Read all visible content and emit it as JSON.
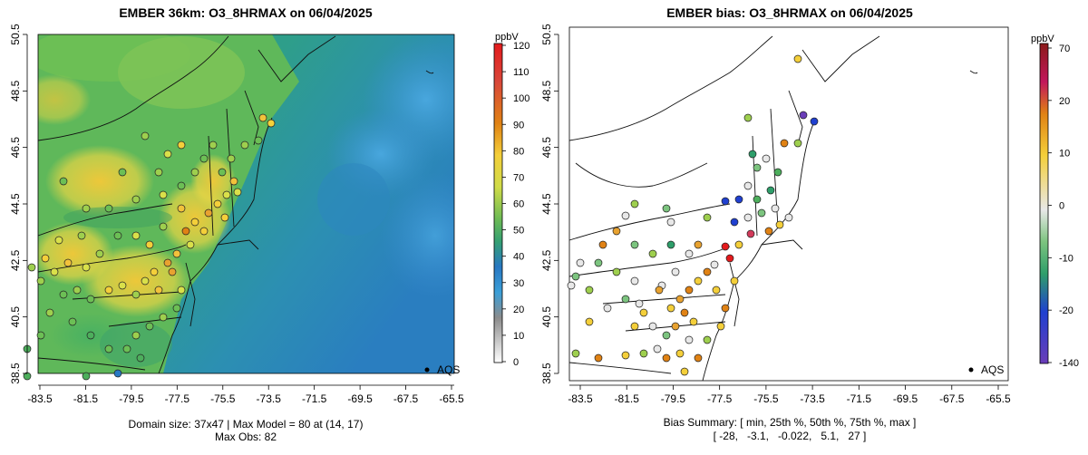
{
  "left": {
    "title": "EMBER 36km: O3_8HRMAX on 06/04/2025",
    "unit": "ppbV",
    "colorbar_ticks": [
      "120",
      "110",
      "100",
      "90",
      "80",
      "70",
      "60",
      "50",
      "40",
      "30",
      "20",
      "10",
      "0"
    ],
    "colorbar_colors": [
      "#e31a1c",
      "#e34a33",
      "#e08214",
      "#f5a623",
      "#f4cf3a",
      "#d9e04a",
      "#9ecf4e",
      "#4dae5c",
      "#2e9e8a",
      "#2878c2",
      "#3b9fd8",
      "#9a9a9a",
      "#ffffff"
    ],
    "x_ticks": [
      "-83.5",
      "-81.5",
      "-79.5",
      "-77.5",
      "-75.5",
      "-73.5",
      "-71.5",
      "-69.5",
      "-67.5",
      "-65.5"
    ],
    "y_ticks": [
      "50.5",
      "48.5",
      "46.5",
      "44.5",
      "42.5",
      "40.5",
      "38.5"
    ],
    "legend_label": "AQS",
    "footer_line1": "Domain size: 37x47 | Max Model = 80 at (14, 17)",
    "footer_line2": "Max Obs: 82"
  },
  "right": {
    "title": "EMBER bias: O3_8HRMAX on 06/04/2025",
    "unit": "ppbV",
    "colorbar_ticks": [
      "70",
      "20",
      "10",
      "0",
      "-10",
      "-20",
      "-140"
    ],
    "colorbar_colors": [
      "#8b1a1a",
      "#d23a5a",
      "#e08214",
      "#f4cf3a",
      "#e8e8e8",
      "#7cc47f",
      "#2e9e6a",
      "#2040d0",
      "#6a3db8"
    ],
    "x_ticks": [
      "-83.5",
      "-81.5",
      "-79.5",
      "-77.5",
      "-75.5",
      "-73.5",
      "-71.5",
      "-69.5",
      "-67.5",
      "-65.5"
    ],
    "y_ticks": [
      "50.5",
      "48.5",
      "46.5",
      "44.5",
      "42.5",
      "40.5",
      "38.5"
    ],
    "legend_label": "AQS",
    "footer_line1": "Bias Summary: [ min, 25th %, 50th %, 75th %, max ]",
    "footer_line2": "[ -28,   -3.1,   -0.022,   5.1,   27 ]"
  }
}
